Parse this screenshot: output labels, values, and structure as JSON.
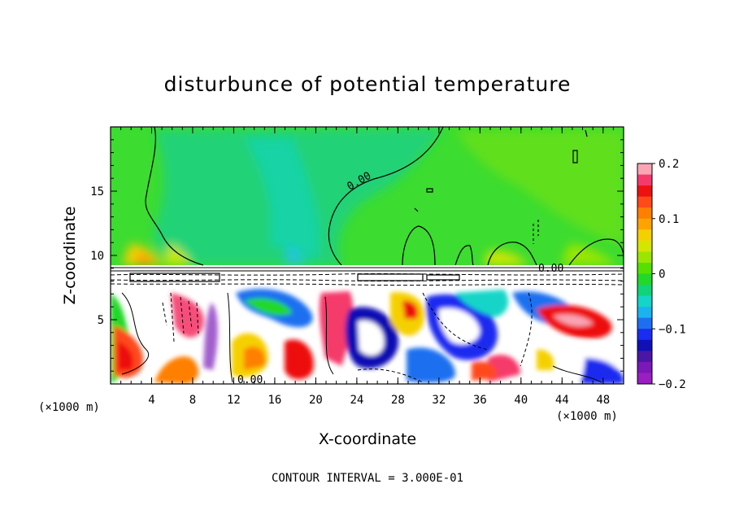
{
  "chart_data": {
    "type": "heatmap",
    "title": "disturbunce of potential temperature",
    "xlabel": "X-coordinate",
    "ylabel": "Z-coordinate",
    "x_unit_left": "(×1000 m)",
    "x_unit_right": "(×1000 m)",
    "xlim": [
      0,
      50
    ],
    "ylim": [
      0,
      20
    ],
    "x_ticks": [
      4,
      8,
      12,
      16,
      20,
      24,
      28,
      32,
      36,
      40,
      44,
      48
    ],
    "y_ticks": [
      5,
      10,
      15
    ],
    "colorbar": {
      "min": -0.2,
      "max": 0.2,
      "ticks": [
        "0.2",
        "0.1",
        "0",
        "−0.1",
        "−0.2"
      ],
      "colors": [
        "#f9a5b4",
        "#f53a6b",
        "#ee1111",
        "#ff4a1a",
        "#ff7f00",
        "#ffa300",
        "#f5d000",
        "#d4e600",
        "#9ae600",
        "#55e000",
        "#22d828",
        "#11d37a",
        "#14d5c8",
        "#1ab3f0",
        "#1e6ff0",
        "#1a2cf0",
        "#1010b4",
        "#4a16a8",
        "#7a18b8",
        "#9a1ec0"
      ]
    },
    "contour_labels": [
      "0.00",
      "0.00",
      "0.00"
    ],
    "contour_interval": "CONTOUR INTERVAL = 3.000E-01"
  }
}
